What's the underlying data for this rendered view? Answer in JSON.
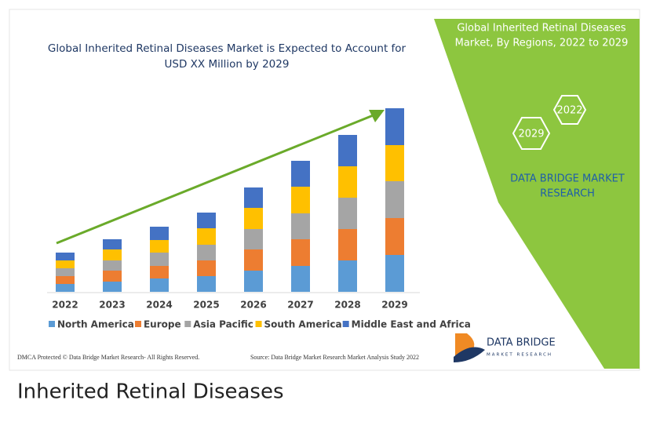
{
  "chart_data": {
    "type": "stacked_bar",
    "title": [
      "Global Inherited Retinal Diseases Market is Expected to Account for",
      "USD XX Million by 2029"
    ],
    "categories": [
      "2022",
      "2023",
      "2024",
      "2025",
      "2026",
      "2027",
      "2028",
      "2029"
    ],
    "series": [
      {
        "name": "North America",
        "color": "#5b9bd5",
        "values": [
          10,
          13,
          17,
          20,
          27,
          33,
          40,
          47
        ]
      },
      {
        "name": "Europe",
        "color": "#ed7d31",
        "values": [
          10,
          14,
          16,
          20,
          27,
          34,
          40,
          47
        ]
      },
      {
        "name": "Asia Pacific",
        "color": "#a5a5a5",
        "values": [
          10,
          13,
          17,
          20,
          26,
          33,
          40,
          47
        ]
      },
      {
        "name": "South America",
        "color": "#ffc000",
        "values": [
          10,
          14,
          16,
          21,
          27,
          34,
          40,
          46
        ]
      },
      {
        "name": "Middle East and Africa",
        "color": "#4472c4",
        "values": [
          10,
          13,
          17,
          20,
          26,
          33,
          40,
          47
        ]
      }
    ],
    "ylim": [
      0,
      240
    ]
  },
  "panel": {
    "title": [
      "Global Inherited Retinal Diseases",
      "Market, By Regions, 2022 to 2029"
    ],
    "hexagons": [
      "2022",
      "2029"
    ],
    "brand": [
      "DATA BRIDGE MARKET",
      "RESEARCH"
    ]
  },
  "logo": {
    "name": "DATA BRIDGE",
    "tagline": "MARKET RESEARCH"
  },
  "footer": {
    "left": "DMCA Protected © Data Bridge Market Research- All Rights Reserved.",
    "right": "Source: Data Bridge Market Research Market Analysis Study 2022"
  },
  "caption": "Inherited Retinal Diseases"
}
